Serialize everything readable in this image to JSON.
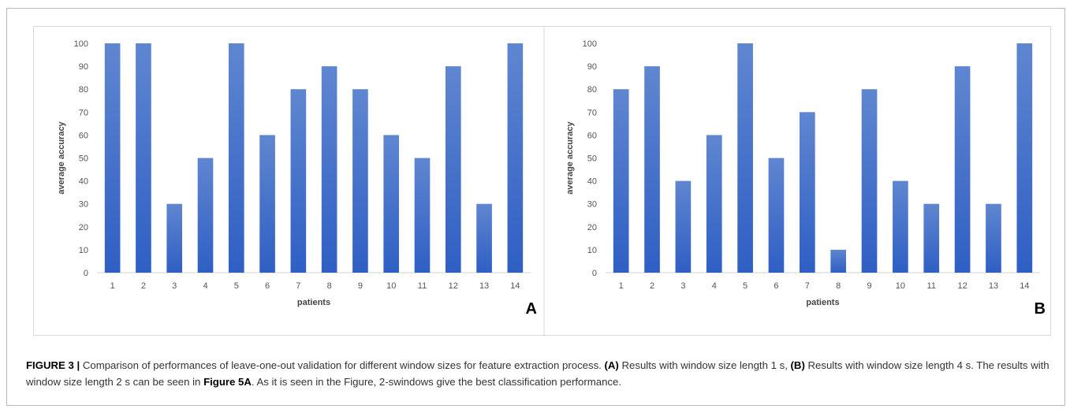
{
  "chart_data": [
    {
      "type": "bar",
      "panel": "A",
      "categories": [
        "1",
        "2",
        "3",
        "4",
        "5",
        "6",
        "7",
        "8",
        "9",
        "10",
        "11",
        "12",
        "13",
        "14"
      ],
      "values": [
        100,
        100,
        30,
        50,
        100,
        60,
        80,
        90,
        80,
        60,
        50,
        90,
        30,
        100
      ],
      "xlabel": "patients",
      "ylabel": "average accuracy",
      "ylim": [
        0,
        100
      ],
      "yticks": [
        0,
        10,
        20,
        30,
        40,
        50,
        60,
        70,
        80,
        90,
        100
      ],
      "grid": false,
      "color_top": "#5f86d0",
      "color_bottom": "#2f5fc4"
    },
    {
      "type": "bar",
      "panel": "B",
      "categories": [
        "1",
        "2",
        "3",
        "4",
        "5",
        "6",
        "7",
        "8",
        "9",
        "10",
        "11",
        "12",
        "13",
        "14"
      ],
      "values": [
        80,
        90,
        40,
        60,
        100,
        50,
        70,
        10,
        80,
        40,
        30,
        90,
        30,
        100
      ],
      "xlabel": "patients",
      "ylabel": "average accuracy",
      "ylim": [
        0,
        100
      ],
      "yticks": [
        0,
        10,
        20,
        30,
        40,
        50,
        60,
        70,
        80,
        90,
        100
      ],
      "grid": false,
      "color_top": "#5f86d0",
      "color_bottom": "#2f5fc4"
    }
  ],
  "caption": {
    "figure_label": "FIGURE 3 |",
    "text_1": " Comparison of performances of leave-one-out validation for different window sizes for feature extraction process. ",
    "label_a": "(A)",
    "text_2": " Results with window size length 1 s, ",
    "label_b": "(B)",
    "text_3": " Results with window size length 4 s. The results with window size length 2 s can be seen in ",
    "figure_ref": "Figure 5A",
    "text_4": ". As it is seen in the Figure, 2-swindows give the best classification performance."
  }
}
